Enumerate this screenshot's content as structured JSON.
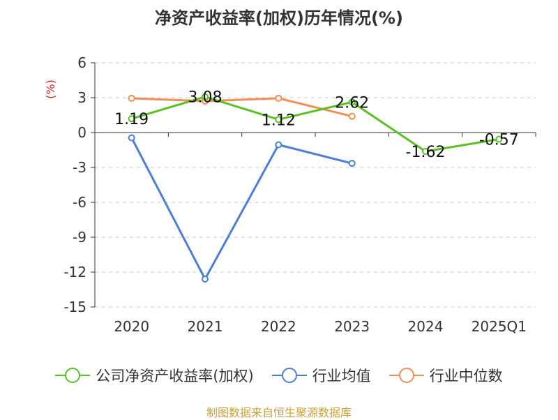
{
  "title": "净资产收益率(加权)历年情况(%)",
  "source": "制图数据来自恒生聚源数据库",
  "chart_data": {
    "type": "line",
    "title": "净资产收益率(加权)历年情况(%)",
    "ylabel": "(%)",
    "xlabel": "",
    "categories": [
      "2020",
      "2021",
      "2022",
      "2023",
      "2024",
      "2025Q1"
    ],
    "ylim": [
      -15,
      6
    ],
    "yticks": [
      6,
      3,
      0,
      -3,
      -6,
      -9,
      -12,
      -15
    ],
    "ytick_labels": [
      "6",
      "3",
      "0",
      "-3",
      "-6",
      "-9",
      "-12",
      "-15"
    ],
    "grid": true,
    "legend_position": "bottom",
    "series": [
      {
        "name": "公司净资产收益率(加权)",
        "color": "#5ac122",
        "values": [
          1.19,
          3.08,
          1.12,
          2.62,
          -1.62,
          -0.57
        ],
        "labels": [
          "1.19",
          "3.08",
          "1.12",
          "2.62",
          "-1.62",
          "-0.57"
        ]
      },
      {
        "name": "行业均值",
        "color": "#4a7fd8",
        "values": [
          -0.45,
          -12.6,
          -1.05,
          -2.65,
          null,
          null
        ]
      },
      {
        "name": "行业中位数",
        "color": "#f48c55",
        "values": [
          2.95,
          2.7,
          2.95,
          1.4,
          null,
          null
        ]
      }
    ]
  }
}
